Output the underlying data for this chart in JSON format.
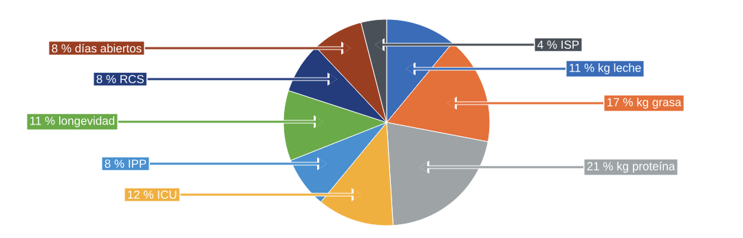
{
  "chart_data": {
    "type": "pie",
    "categories": [
      "kg leche",
      "kg grasa",
      "kg proteína",
      "ICU",
      "IPP",
      "longevidad",
      "RCS",
      "días abiertos",
      "ISP"
    ],
    "values": [
      11,
      17,
      21,
      12,
      8,
      11,
      8,
      8,
      4
    ],
    "value_labels": [
      "11 %",
      "17 %",
      "21 %",
      "12 %",
      "8 %",
      "11 %",
      "8 %",
      "8 %",
      "4 %"
    ],
    "colors": [
      "#3a6cb8",
      "#e4703a",
      "#9ea4a6",
      "#f0b040",
      "#4a90d0",
      "#6aaa48",
      "#243c7c",
      "#9a3e22",
      "#4a5058"
    ]
  }
}
